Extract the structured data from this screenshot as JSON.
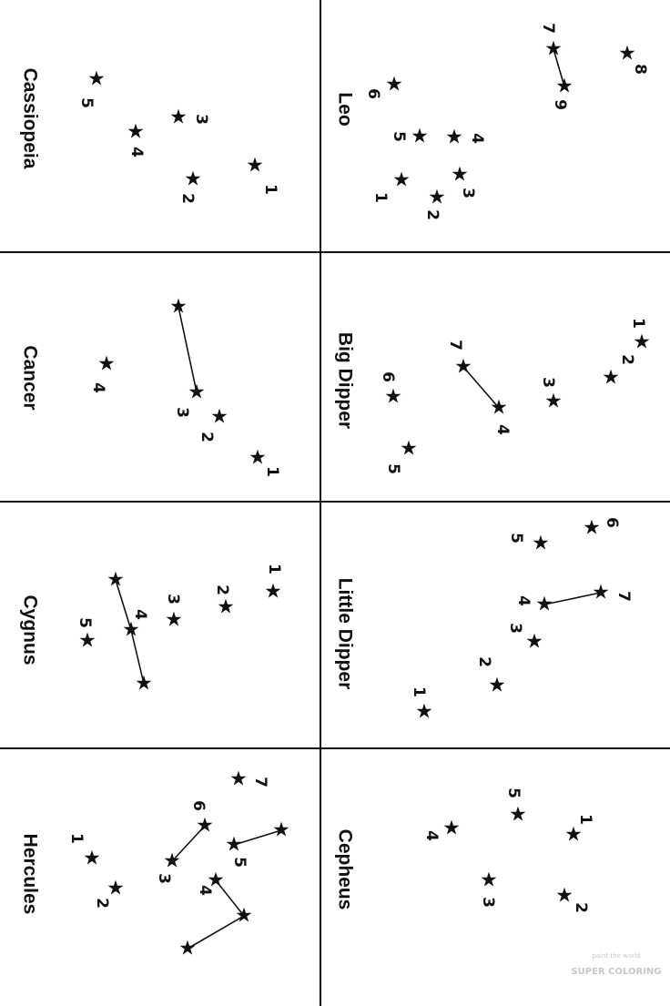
{
  "sheet": {
    "ink_color": "#111111",
    "paper_color": "#ffffff",
    "star_glyph": "★",
    "constellations": [
      {
        "name": "Cassiopeia",
        "stars": [
          {
            "label": "1"
          },
          {
            "label": "2"
          },
          {
            "label": "3"
          },
          {
            "label": "4"
          },
          {
            "label": "5"
          }
        ],
        "links": []
      },
      {
        "name": "Leo",
        "stars": [
          {
            "label": "1"
          },
          {
            "label": "2"
          },
          {
            "label": "3"
          },
          {
            "label": "4"
          },
          {
            "label": "5"
          },
          {
            "label": "6"
          },
          {
            "label": "7"
          },
          {
            "label": "8"
          },
          {
            "label": "9"
          }
        ],
        "links": [
          [
            "7",
            "9"
          ]
        ]
      },
      {
        "name": "Cancer",
        "stars": [
          {
            "label": ""
          },
          {
            "label": "1"
          },
          {
            "label": "2"
          },
          {
            "label": "3"
          },
          {
            "label": "4"
          }
        ],
        "links": [
          [
            "",
            "3"
          ]
        ]
      },
      {
        "name": "Big Dipper",
        "stars": [
          {
            "label": "1"
          },
          {
            "label": "2"
          },
          {
            "label": "3"
          },
          {
            "label": "4"
          },
          {
            "label": "5"
          },
          {
            "label": "6"
          },
          {
            "label": "7"
          }
        ],
        "links": [
          [
            "7",
            "4"
          ]
        ]
      },
      {
        "name": "Cygnus",
        "stars": [
          {
            "label": "1"
          },
          {
            "label": "2"
          },
          {
            "label": "3"
          },
          {
            "label": "4"
          },
          {
            "label": "5"
          },
          {
            "label": ""
          },
          {
            "label": ""
          }
        ],
        "links": [
          [
            "",
            "4"
          ],
          [
            "4",
            ""
          ]
        ]
      },
      {
        "name": "Little Dipper",
        "stars": [
          {
            "label": "1"
          },
          {
            "label": "2"
          },
          {
            "label": "3"
          },
          {
            "label": "4"
          },
          {
            "label": "5"
          },
          {
            "label": "6"
          },
          {
            "label": "7"
          }
        ],
        "links": [
          [
            "4",
            "7"
          ]
        ]
      },
      {
        "name": "Hercules",
        "stars": [
          {
            "label": "1"
          },
          {
            "label": "2"
          },
          {
            "label": "3"
          },
          {
            "label": "4"
          },
          {
            "label": "5"
          },
          {
            "label": "6"
          },
          {
            "label": "7"
          },
          {
            "label": ""
          },
          {
            "label": ""
          },
          {
            "label": ""
          }
        ],
        "links": [
          [
            "6",
            "3"
          ],
          [
            "5",
            ""
          ],
          [
            "4",
            ""
          ],
          [
            "",
            ""
          ]
        ]
      },
      {
        "name": "Cepheus",
        "stars": [
          {
            "label": "1"
          },
          {
            "label": "2"
          },
          {
            "label": "3"
          },
          {
            "label": "4"
          },
          {
            "label": "5"
          }
        ],
        "links": []
      }
    ]
  },
  "watermark": {
    "line1": "paint the world",
    "line2": "SUPER COLORING"
  }
}
